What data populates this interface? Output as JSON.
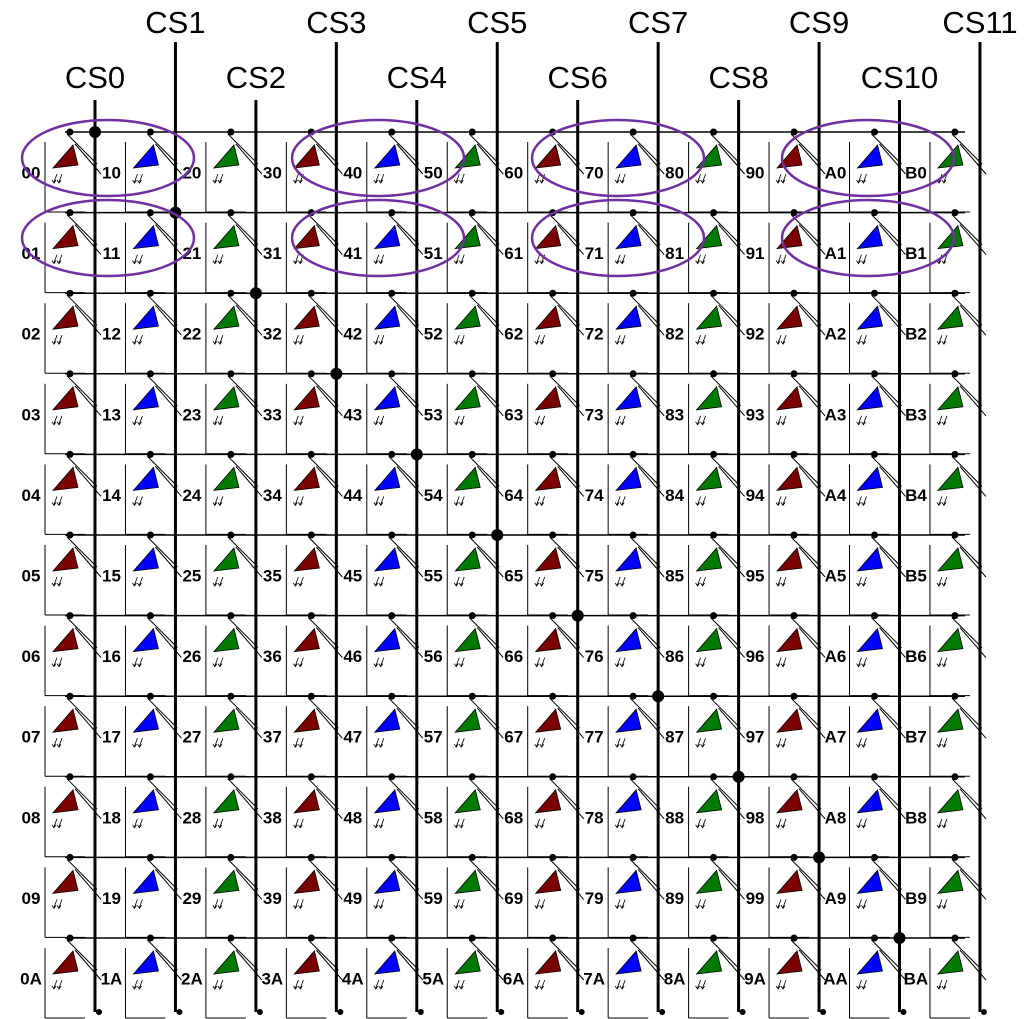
{
  "column_selects": [
    "CS0",
    "CS1",
    "CS2",
    "CS3",
    "CS4",
    "CS5",
    "CS6",
    "CS7",
    "CS8",
    "CS9",
    "CS10",
    "CS11"
  ],
  "matrix": {
    "rows": [
      [
        "00",
        "10",
        "20",
        "30",
        "40",
        "50",
        "60",
        "70",
        "80",
        "90",
        "A0",
        "B0"
      ],
      [
        "01",
        "11",
        "21",
        "31",
        "41",
        "51",
        "61",
        "71",
        "81",
        "91",
        "A1",
        "B1"
      ],
      [
        "02",
        "12",
        "22",
        "32",
        "42",
        "52",
        "62",
        "72",
        "82",
        "92",
        "A2",
        "B2"
      ],
      [
        "03",
        "13",
        "23",
        "33",
        "43",
        "53",
        "63",
        "73",
        "83",
        "93",
        "A3",
        "B3"
      ],
      [
        "04",
        "14",
        "24",
        "34",
        "44",
        "54",
        "64",
        "74",
        "84",
        "94",
        "A4",
        "B4"
      ],
      [
        "05",
        "15",
        "25",
        "35",
        "45",
        "55",
        "65",
        "75",
        "85",
        "95",
        "A5",
        "B5"
      ],
      [
        "06",
        "16",
        "26",
        "36",
        "46",
        "56",
        "66",
        "76",
        "86",
        "96",
        "A6",
        "B6"
      ],
      [
        "07",
        "17",
        "27",
        "37",
        "47",
        "57",
        "67",
        "77",
        "87",
        "97",
        "A7",
        "B7"
      ],
      [
        "08",
        "18",
        "28",
        "38",
        "48",
        "58",
        "68",
        "78",
        "88",
        "98",
        "A8",
        "B8"
      ],
      [
        "09",
        "19",
        "29",
        "39",
        "49",
        "59",
        "69",
        "79",
        "89",
        "99",
        "A9",
        "B9"
      ],
      [
        "0A",
        "1A",
        "2A",
        "3A",
        "4A",
        "5A",
        "6A",
        "7A",
        "8A",
        "9A",
        "AA",
        "BA"
      ]
    ]
  }
}
